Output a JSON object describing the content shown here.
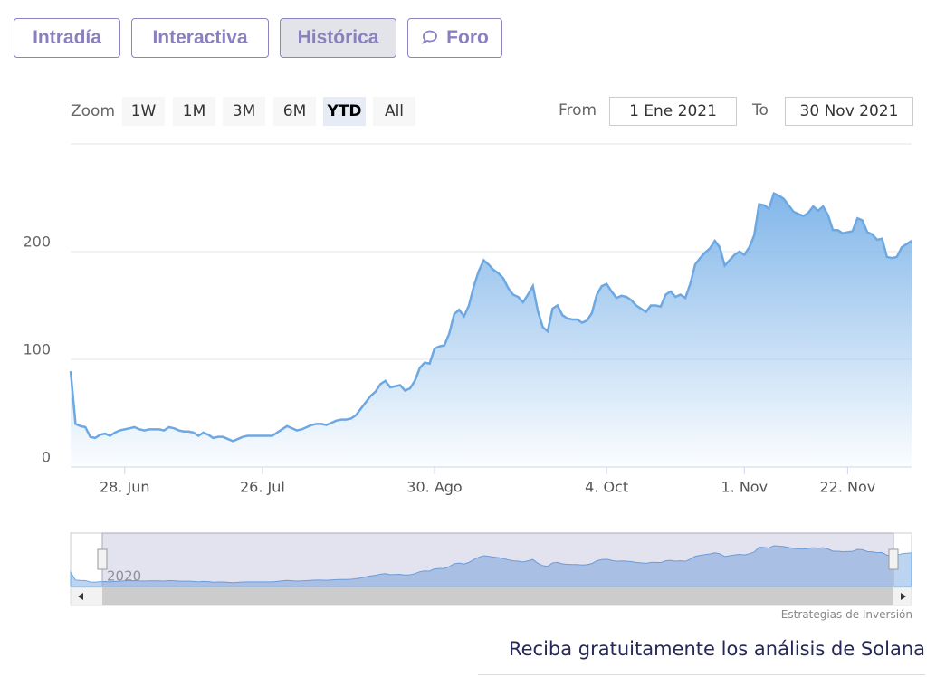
{
  "chart_data": {
    "type": "area",
    "categories": [
      null,
      null,
      null,
      null,
      null,
      null,
      null,
      null,
      null,
      null,
      null,
      "28. Jun",
      null,
      null,
      null,
      null,
      null,
      null,
      null,
      null,
      null,
      null,
      null,
      null,
      null,
      null,
      null,
      null,
      null,
      null,
      null,
      null,
      null,
      null,
      null,
      null,
      null,
      null,
      null,
      "26. Jul",
      null,
      null,
      null,
      null,
      null,
      null,
      null,
      null,
      null,
      null,
      null,
      null,
      null,
      null,
      null,
      null,
      null,
      null,
      null,
      null,
      null,
      null,
      null,
      null,
      null,
      null,
      null,
      null,
      null,
      null,
      null,
      null,
      null,
      null,
      "30. Ago",
      null,
      null,
      null,
      null,
      null,
      null,
      null,
      null,
      null,
      null,
      null,
      null,
      null,
      null,
      null,
      null,
      null,
      null,
      null,
      null,
      null,
      null,
      null,
      null,
      null,
      null,
      null,
      null,
      null,
      null,
      null,
      null,
      null,
      null,
      "4. Oct",
      null,
      null,
      null,
      null,
      null,
      null,
      null,
      null,
      null,
      null,
      null,
      null,
      null,
      null,
      null,
      null,
      null,
      null,
      null,
      null,
      null,
      null,
      null,
      null,
      null,
      null,
      null,
      "1. Nov",
      null,
      null,
      null,
      null,
      null,
      null,
      null,
      null,
      null,
      null,
      null,
      null,
      null,
      null,
      null,
      null,
      null,
      null,
      null,
      null,
      "22. Nov",
      null,
      null,
      null,
      null,
      null,
      null,
      null,
      null,
      null,
      null,
      null,
      null,
      null
    ],
    "series": [
      {
        "color": "#6ea8e2",
        "values": [
          89,
          40,
          38,
          37,
          28,
          27,
          30,
          31,
          29,
          32,
          34,
          35,
          36,
          37,
          35,
          34,
          35,
          35,
          35,
          34,
          37,
          36,
          34,
          33,
          33,
          32,
          29,
          32,
          30,
          27,
          28,
          28,
          26,
          24,
          26,
          28,
          29,
          29,
          29,
          29,
          29,
          29,
          32,
          35,
          38,
          36,
          34,
          35,
          37,
          39,
          40,
          40,
          39,
          41,
          43,
          44,
          44,
          45,
          48,
          54,
          60,
          66,
          70,
          77,
          80,
          74,
          75,
          76,
          71,
          73,
          80,
          92,
          97,
          96,
          110,
          112,
          113,
          124,
          142,
          146,
          140,
          150,
          168,
          182,
          192,
          188,
          183,
          180,
          175,
          166,
          160,
          158,
          153,
          160,
          168,
          145,
          130,
          126,
          147,
          150,
          141,
          138,
          137,
          137,
          134,
          136,
          143,
          160,
          168,
          170,
          163,
          157,
          159,
          158,
          155,
          150,
          147,
          144,
          150,
          150,
          149,
          160,
          163,
          158,
          160,
          157,
          170,
          188,
          194,
          199,
          203,
          210,
          204,
          187,
          192,
          197,
          200,
          197,
          204,
          215,
          244,
          243,
          240,
          254,
          252,
          249,
          243,
          237,
          235,
          233,
          236,
          242,
          238,
          242,
          234,
          220,
          220,
          217,
          218,
          219,
          231,
          229,
          218,
          216,
          211,
          212,
          195,
          194,
          195,
          204,
          207,
          210
        ]
      }
    ],
    "ylim": [
      0,
      300
    ],
    "yticks": [
      0,
      100,
      200
    ],
    "grid": true
  },
  "ui": {
    "tabs": [
      "Intradía",
      "Interactiva",
      "Histórica",
      "Foro"
    ],
    "zoom_label": "Zoom",
    "zoom_buttons": [
      "1W",
      "1M",
      "3M",
      "6M",
      "YTD",
      "All"
    ],
    "from_label": "From",
    "from_value": "1 Ene 2021",
    "to_label": "To",
    "to_value": "30 Nov 2021",
    "navigator_label": "2020",
    "credit": "Estrategias de Inversión",
    "footer": "Reciba gratuitamente los análisis de Solana"
  }
}
